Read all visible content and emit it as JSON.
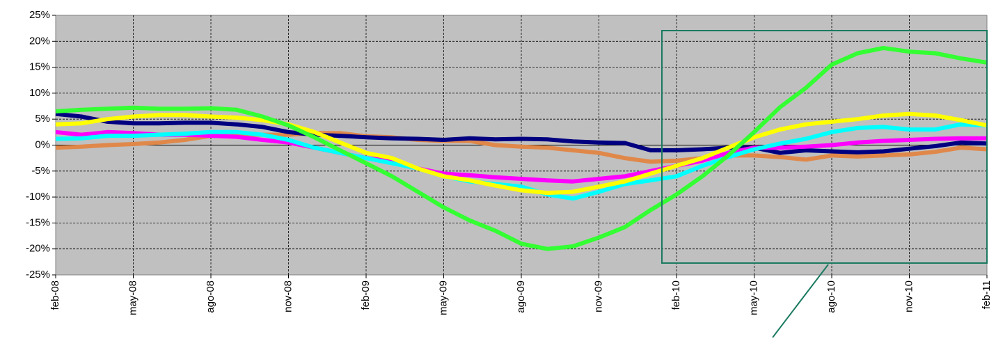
{
  "chart_data": {
    "type": "line",
    "categories": [
      "feb-08",
      null,
      null,
      "may-08",
      null,
      null,
      "ago-08",
      null,
      null,
      "nov-08",
      null,
      null,
      "feb-09",
      null,
      null,
      "may-09",
      null,
      null,
      "ago-09",
      null,
      null,
      "nov-09",
      null,
      null,
      "feb-10",
      null,
      null,
      "may-10",
      null,
      null,
      "ago-10",
      null,
      null,
      "nov-10",
      null,
      null,
      "feb-11"
    ],
    "ylim": [
      -25,
      25
    ],
    "yticks": [
      {
        "value": -25,
        "label": "-25%"
      },
      {
        "value": -20,
        "label": "-20%"
      },
      {
        "value": -15,
        "label": "-15%"
      },
      {
        "value": -10,
        "label": "-10%"
      },
      {
        "value": -5,
        "label": "-5%"
      },
      {
        "value": 0,
        "label": "0%"
      },
      {
        "value": 5,
        "label": "5%"
      },
      {
        "value": 10,
        "label": "10%"
      },
      {
        "value": 15,
        "label": "15%"
      },
      {
        "value": 20,
        "label": "20%"
      },
      {
        "value": 25,
        "label": "25%"
      }
    ],
    "grid": true,
    "series": [
      {
        "color": "#e0884a",
        "values": [
          -0.5,
          -0.3,
          0,
          0.2,
          0.5,
          1,
          1.8,
          2,
          2,
          2,
          2.3,
          2.3,
          1.7,
          1.5,
          1,
          0.8,
          0.8,
          0,
          -0.3,
          -0.5,
          -1,
          -1.5,
          -2.5,
          -3.2,
          -3,
          -2.5,
          -2,
          -2,
          -2.3,
          -2.8,
          -2,
          -2.2,
          -2,
          -1.8,
          -1.3,
          -0.5,
          -0.8
        ]
      },
      {
        "color": "#000080",
        "values": [
          6,
          5.5,
          4.5,
          4.2,
          4.2,
          4.3,
          4.3,
          4,
          3.5,
          2.5,
          2,
          1.8,
          1.5,
          1.3,
          1.2,
          1,
          1.3,
          1.1,
          1.2,
          1.1,
          0.7,
          0.5,
          0.4,
          -1,
          -1,
          -0.8,
          -0.5,
          -0.5,
          -1.5,
          -1,
          -1.2,
          -1.4,
          -1.2,
          -0.7,
          -0.2,
          0.5,
          0.3
        ]
      },
      {
        "color": "#ff00ff",
        "values": [
          2.5,
          2,
          2.5,
          2.3,
          2,
          2,
          1.8,
          1.6,
          1,
          0.5,
          -0.5,
          -1.5,
          -2.5,
          -3,
          -4.5,
          -5.5,
          -5.8,
          -6.2,
          -6.5,
          -6.8,
          -7,
          -6.5,
          -6,
          -5,
          -4,
          -3,
          -1.5,
          -0.5,
          -0.5,
          -0.3,
          0,
          0.5,
          0.8,
          1,
          1.2,
          1.3,
          1.3
        ]
      },
      {
        "color": "#00ffff",
        "values": [
          1.2,
          1.3,
          1.8,
          1.8,
          2,
          2.2,
          2.5,
          2.5,
          2,
          1,
          -0.5,
          -1.5,
          -2.5,
          -3.5,
          -4.5,
          -6,
          -7,
          -7.5,
          -8,
          -9.5,
          -10.3,
          -9,
          -7.5,
          -6.8,
          -6,
          -4,
          -2.3,
          -0.8,
          0.3,
          1.2,
          2.5,
          3.3,
          3.5,
          3,
          3,
          4,
          3.8
        ]
      },
      {
        "color": "#ffff00",
        "values": [
          4,
          4.2,
          5,
          5.5,
          5.8,
          5.8,
          5.5,
          5.3,
          4.8,
          4,
          2.5,
          0.5,
          -1.5,
          -2.5,
          -4.5,
          -6,
          -6.8,
          -7.8,
          -8.7,
          -9.2,
          -9,
          -8,
          -7,
          -5.5,
          -4,
          -2.5,
          -0.5,
          1.5,
          3,
          4,
          4.5,
          5,
          5.7,
          6,
          5.7,
          4.8,
          3.8
        ]
      },
      {
        "color": "#33ff33",
        "values": [
          6.5,
          6.8,
          7,
          7.2,
          7,
          7,
          7.1,
          6.8,
          5.5,
          3.8,
          1.5,
          -1,
          -3.5,
          -6,
          -9,
          -12,
          -14.5,
          -16.5,
          -19,
          -20,
          -19.5,
          -17.8,
          -15.8,
          -12.5,
          -9.5,
          -6,
          -2,
          2.5,
          7.3,
          11,
          15.5,
          17.7,
          18.7,
          18,
          17.7,
          16.7,
          15.9
        ]
      }
    ]
  }
}
